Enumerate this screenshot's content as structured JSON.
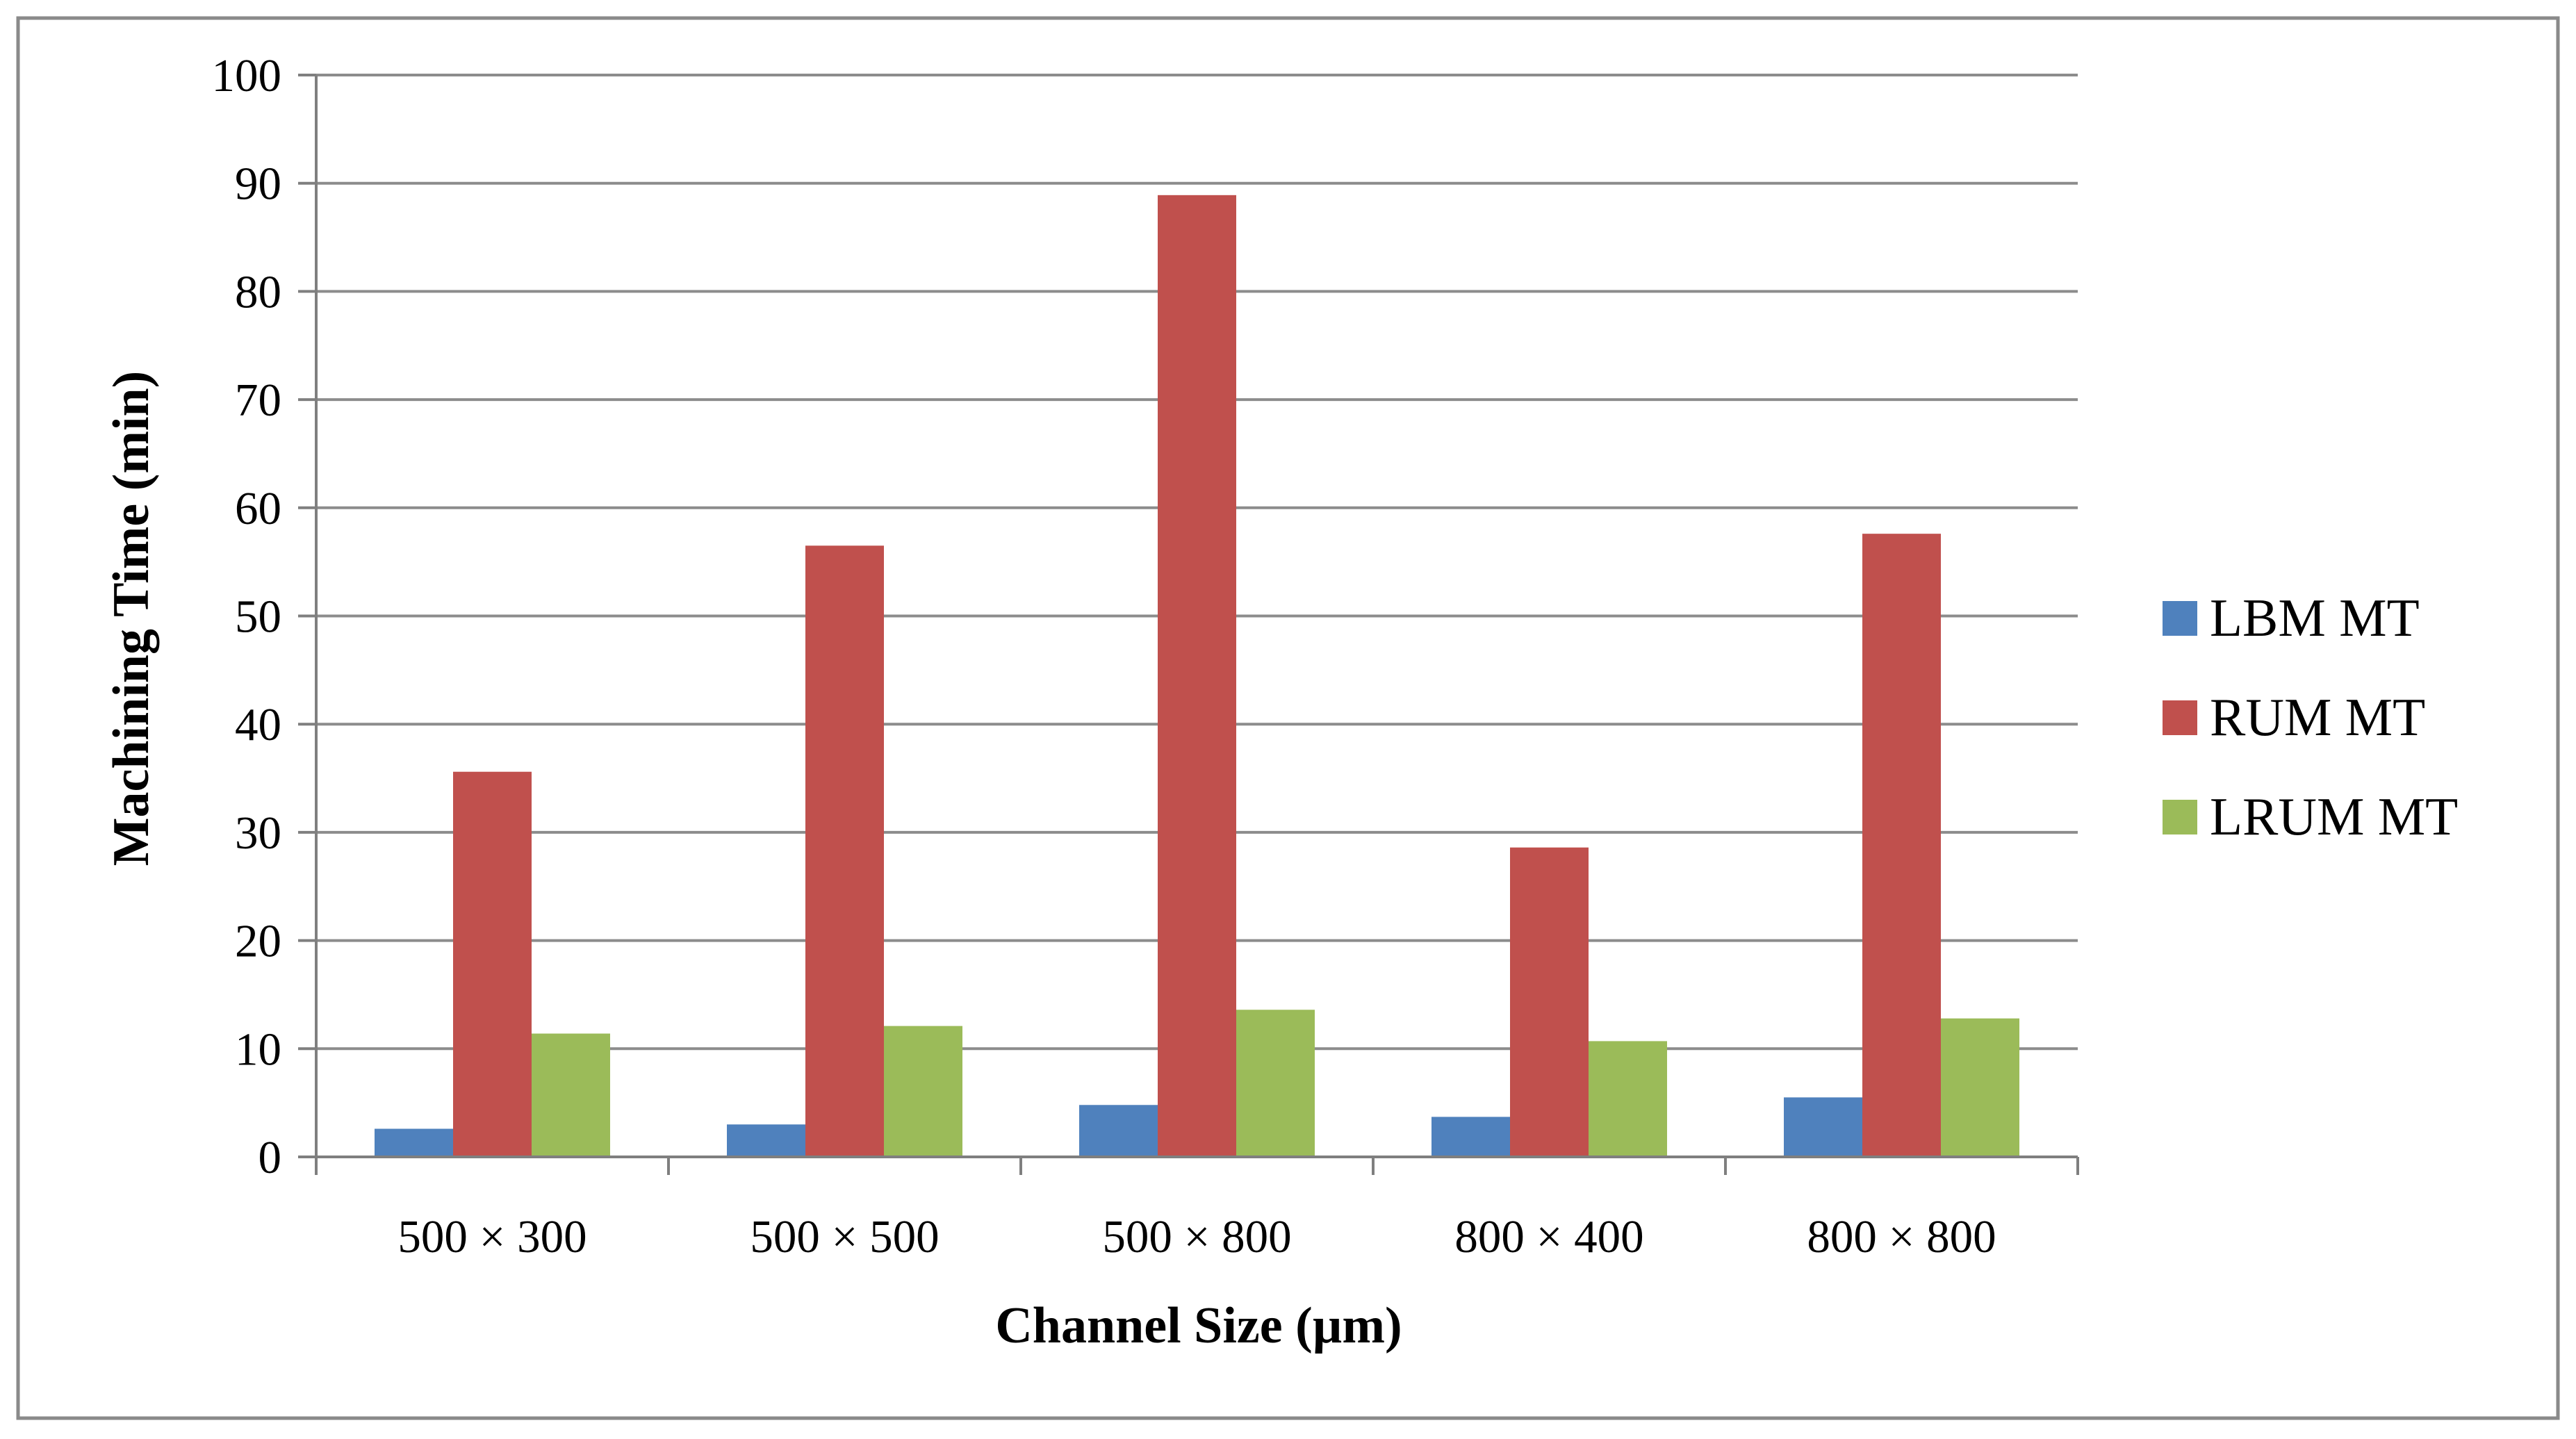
{
  "chart_data": {
    "type": "bar",
    "xlabel": "Channel Size (µm)",
    "ylabel": "Machining Time (min)",
    "categories": [
      "500 × 300",
      "500 × 500",
      "500 × 800",
      "800 × 400",
      "800 × 800"
    ],
    "series": [
      {
        "name": "LBM MT",
        "color": "#4F81BD",
        "values": [
          2.6,
          3.0,
          4.8,
          3.7,
          5.5
        ]
      },
      {
        "name": "RUM MT",
        "color": "#C0504D",
        "values": [
          35.6,
          56.5,
          88.9,
          28.6,
          57.6
        ]
      },
      {
        "name": "LRUM MT",
        "color": "#9BBB59",
        "values": [
          11.4,
          12.1,
          13.6,
          10.7,
          12.8
        ]
      }
    ],
    "ylim": [
      0,
      100
    ],
    "yticks": [
      0,
      10,
      20,
      30,
      40,
      50,
      60,
      70,
      80,
      90,
      100
    ],
    "grid": true,
    "legend": "right"
  }
}
